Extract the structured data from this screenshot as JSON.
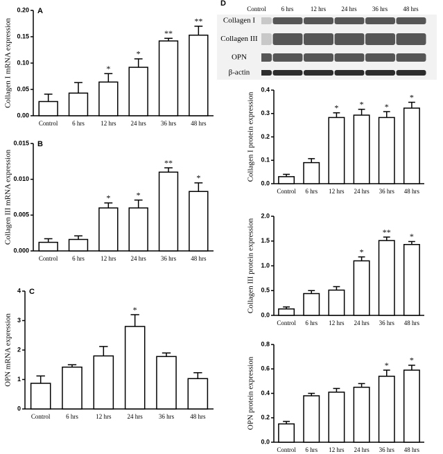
{
  "chart_data": [
    {
      "type": "bar",
      "panel": "A",
      "y_label": "Collagen I mRNA expression",
      "categories": [
        "Control",
        "6 hrs",
        "12 hrs",
        "24 hrs",
        "36 hrs",
        "48 hrs"
      ],
      "values": [
        0.027,
        0.043,
        0.064,
        0.092,
        0.142,
        0.153
      ],
      "errors": [
        0.014,
        0.02,
        0.016,
        0.016,
        0.005,
        0.017
      ],
      "significance": [
        null,
        null,
        "*",
        "*",
        "**",
        "**"
      ],
      "color": "#ffffff",
      "ylim": [
        0,
        0.2
      ],
      "yticks": [
        {
          "value": 0,
          "label": "0.00"
        },
        {
          "value": 0.05,
          "label": "0.05"
        },
        {
          "value": 0.1,
          "label": "0.10"
        },
        {
          "value": 0.15,
          "label": "0.15"
        },
        {
          "value": 0.2,
          "label": "0.20"
        }
      ]
    },
    {
      "type": "bar",
      "panel": "B",
      "y_label": "Collagen III mRNA expression",
      "categories": [
        "Control",
        "6 hrs",
        "12 hrs",
        "24 hrs",
        "36 hrs",
        "48 hrs"
      ],
      "values": [
        0.0012,
        0.0016,
        0.006,
        0.006,
        0.011,
        0.0083
      ],
      "errors": [
        0.0005,
        0.0005,
        0.0007,
        0.0011,
        0.0006,
        0.0012
      ],
      "significance": [
        null,
        null,
        "*",
        "*",
        "**",
        "*"
      ],
      "color": "#ffffff",
      "ylim": [
        0,
        0.015
      ],
      "yticks": [
        {
          "value": 0,
          "label": "0.000"
        },
        {
          "value": 0.005,
          "label": "0.005"
        },
        {
          "value": 0.01,
          "label": "0.010"
        },
        {
          "value": 0.015,
          "label": "0.015"
        }
      ]
    },
    {
      "type": "bar",
      "panel": "C",
      "y_label": "OPN mRNA expression",
      "categories": [
        "Control",
        "6 hrs",
        "12 hrs",
        "24 hrs",
        "36 hrs",
        "48 hrs"
      ],
      "values": [
        0.87,
        1.42,
        1.8,
        2.8,
        1.78,
        1.03
      ],
      "errors": [
        0.25,
        0.08,
        0.32,
        0.4,
        0.12,
        0.2
      ],
      "significance": [
        null,
        null,
        null,
        "*",
        null,
        null
      ],
      "color": "#ffffff",
      "ylim": [
        0,
        4
      ],
      "yticks": [
        0,
        1,
        2,
        3,
        4
      ]
    },
    {
      "type": "bar",
      "y_label": "Collagen I protein expression",
      "categories": [
        "Control",
        "6 hrs",
        "12 hrs",
        "24 hrs",
        "36 hrs",
        "48 hrs"
      ],
      "values": [
        0.03,
        0.09,
        0.283,
        0.293,
        0.283,
        0.323
      ],
      "errors": [
        0.01,
        0.017,
        0.02,
        0.025,
        0.025,
        0.025
      ],
      "significance": [
        null,
        null,
        "*",
        "*",
        "*",
        "*"
      ],
      "color": "#ffffff",
      "ylim": [
        0,
        0.4
      ],
      "yticks": [
        {
          "value": 0,
          "label": "0.0"
        },
        0.1,
        0.2,
        0.3,
        0.4
      ]
    },
    {
      "type": "bar",
      "y_label": "Collagen III protein expression",
      "categories": [
        "Control",
        "6 hrs",
        "12 hrs",
        "24 hrs",
        "36 hrs",
        "48 hrs"
      ],
      "values": [
        0.13,
        0.44,
        0.51,
        1.1,
        1.51,
        1.43
      ],
      "errors": [
        0.04,
        0.06,
        0.07,
        0.08,
        0.07,
        0.06
      ],
      "significance": [
        null,
        null,
        null,
        "*",
        "**",
        "*"
      ],
      "color": "#ffffff",
      "ylim": [
        0,
        2
      ],
      "yticks": [
        {
          "value": 0,
          "label": "0.0"
        },
        0.5,
        {
          "value": 1,
          "label": "1.0"
        },
        1.5,
        {
          "value": 2,
          "label": "2.0"
        }
      ]
    },
    {
      "type": "bar",
      "y_label": "OPN protein expression",
      "categories": [
        "Control",
        "6 hrs",
        "12 hrs",
        "24 hrs",
        "36 hrs",
        "48 hrs"
      ],
      "values": [
        0.15,
        0.38,
        0.41,
        0.45,
        0.54,
        0.59
      ],
      "errors": [
        0.02,
        0.02,
        0.03,
        0.03,
        0.05,
        0.04
      ],
      "significance": [
        null,
        null,
        null,
        null,
        "*",
        "*"
      ],
      "color": "#ffffff",
      "ylim": [
        0,
        0.8
      ],
      "yticks": [
        {
          "value": 0,
          "label": "0.0"
        },
        0.2,
        0.4,
        0.6,
        0.8
      ]
    }
  ],
  "blot": {
    "panel": "D",
    "lanes": [
      "Control",
      "6 hrs",
      "12 hrs",
      "24 hrs",
      "36 hrs",
      "48 hrs"
    ],
    "rows": [
      "Collagen I",
      "Collagen III",
      "OPN",
      "β-actin"
    ]
  }
}
